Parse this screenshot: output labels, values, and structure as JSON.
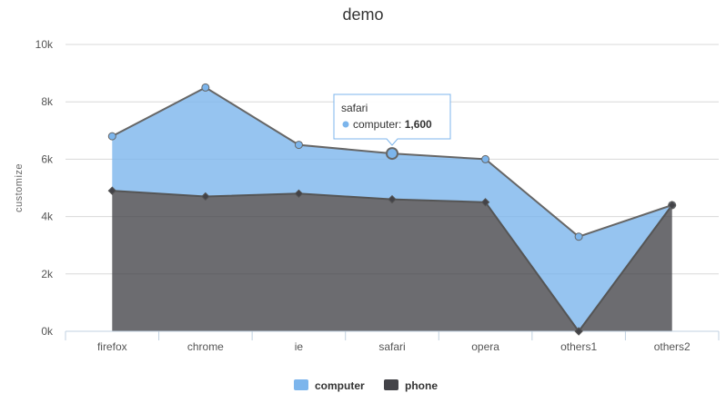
{
  "chart_data": {
    "type": "area",
    "stacking": "normal",
    "title": "demo",
    "ylabel": "customize",
    "xlabel": "",
    "categories": [
      "firefox",
      "chrome",
      "ie",
      "safari",
      "opera",
      "others1",
      "others2"
    ],
    "ylim": [
      0,
      10000
    ],
    "yticks": [
      "0k",
      "2k",
      "4k",
      "6k",
      "8k",
      "10k"
    ],
    "series": [
      {
        "name": "computer",
        "values": [
          1900,
          3800,
          1700,
          1600,
          1500,
          3300,
          0
        ],
        "color": "#7cb5ec"
      },
      {
        "name": "phone",
        "values": [
          4900,
          4700,
          4800,
          4600,
          4500,
          0,
          4400
        ],
        "color": "#434348"
      }
    ],
    "grid": true,
    "legend": "bottom-center",
    "tooltip": {
      "title": "safari",
      "series": "computer",
      "label": "computer: ",
      "value": "1,600"
    }
  }
}
